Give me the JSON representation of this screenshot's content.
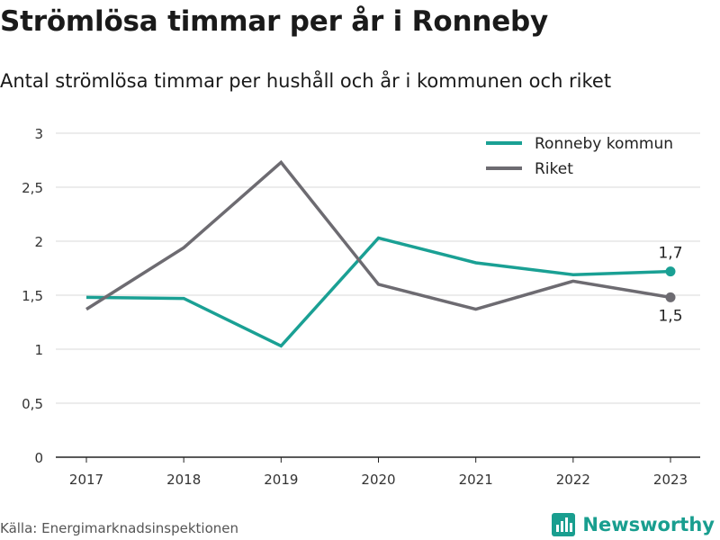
{
  "title": "Strömlösa timmar per år i Ronneby",
  "subtitle": "Antal strömlösa timmar per hushåll och år i kommunen och riket",
  "source": "Källa: Energimarknadsinspektionen",
  "brand": "Newsworthy",
  "colors": {
    "ronneby": "#1aa094",
    "riket": "#6d6b71",
    "grid": "#d9d9d9",
    "axis": "#222222",
    "brand": "#199e8f"
  },
  "chart_data": {
    "type": "line",
    "x": [
      "2017",
      "2018",
      "2019",
      "2020",
      "2021",
      "2022",
      "2023"
    ],
    "ylim": [
      0,
      3
    ],
    "yticks": [
      0,
      0.5,
      1,
      1.5,
      2,
      2.5,
      3
    ],
    "ytick_labels": [
      "0",
      "0,5",
      "1",
      "1,5",
      "2",
      "2,5",
      "3"
    ],
    "grid": true,
    "legend_position": "top-right",
    "series": [
      {
        "name": "Ronneby kommun",
        "color": "#1aa094",
        "values": [
          1.48,
          1.47,
          1.03,
          2.03,
          1.8,
          1.69,
          1.72
        ],
        "end_label": "1,7"
      },
      {
        "name": "Riket",
        "color": "#6d6b71",
        "values": [
          1.37,
          1.94,
          2.73,
          1.6,
          1.37,
          1.63,
          1.48
        ],
        "end_label": "1,5"
      }
    ]
  }
}
